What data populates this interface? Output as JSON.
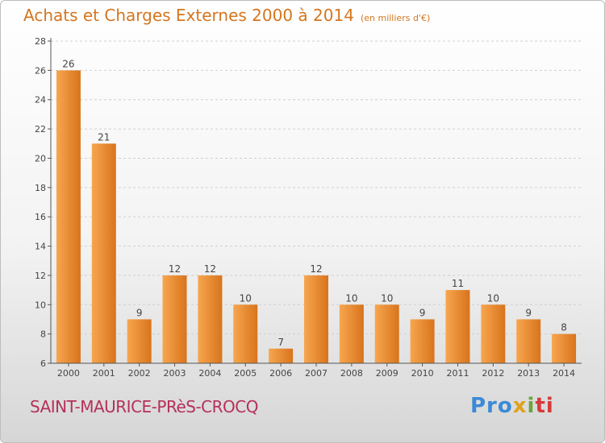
{
  "title": "Achats et Charges Externes 2000 à 2014",
  "unit_note": "(en milliers d'€)",
  "place": "SAINT-MAURICE-PRèS-CROCQ",
  "logo": {
    "p1": "Pro",
    "p2": "x",
    "p3": "i",
    "p4": "ti"
  },
  "colors": {
    "bar_light": "#f7a64f",
    "bar_dark": "#d8741c",
    "title": "#d4761f",
    "place": "#b5305a"
  },
  "chart_data": {
    "type": "bar",
    "title": "Achats et Charges Externes 2000 à 2014",
    "xlabel": "",
    "ylabel": "",
    "ylim": [
      6,
      28
    ],
    "yticks": [
      6,
      8,
      10,
      12,
      14,
      16,
      18,
      20,
      22,
      24,
      26,
      28
    ],
    "grid": true,
    "categories": [
      "2000",
      "2001",
      "2002",
      "2003",
      "2004",
      "2005",
      "2006",
      "2007",
      "2008",
      "2009",
      "2010",
      "2011",
      "2012",
      "2013",
      "2014"
    ],
    "values": [
      26,
      21,
      9,
      12,
      12,
      10,
      7,
      12,
      10,
      10,
      9,
      11,
      10,
      9,
      8
    ]
  }
}
